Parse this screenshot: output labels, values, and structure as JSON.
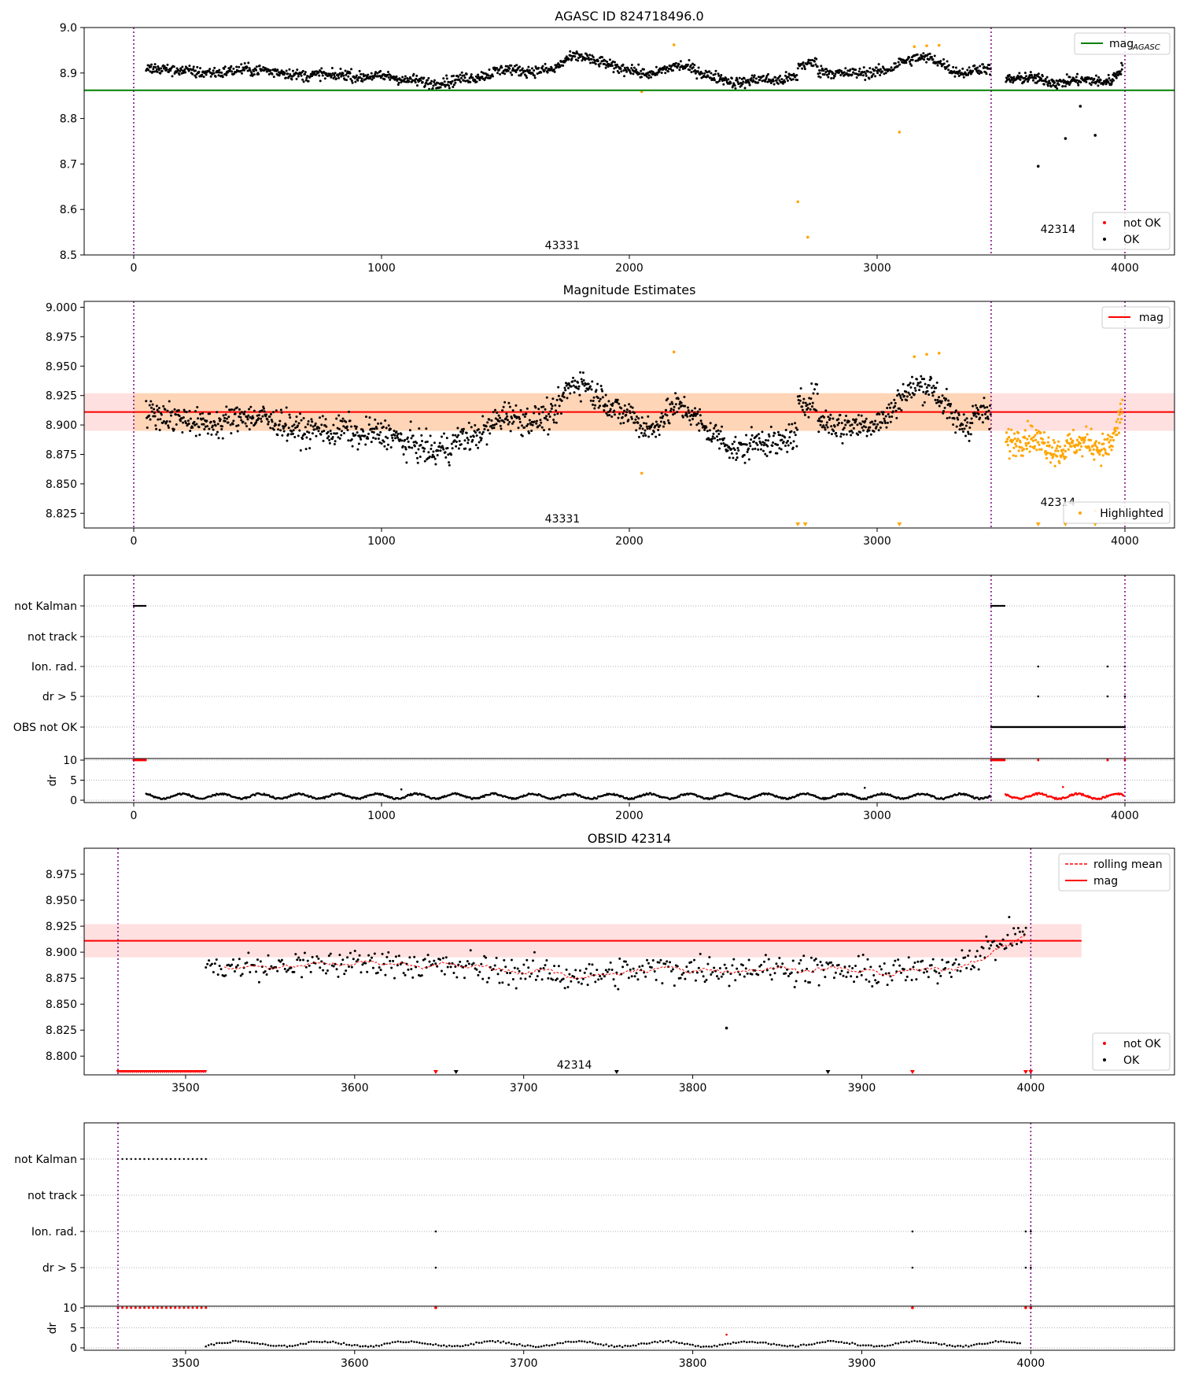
{
  "figure": {
    "title1": "AGASC ID 824718496.0",
    "title2": "Magnitude Estimates",
    "title4": "OBSID 42314"
  },
  "chart_data": [
    {
      "id": "p1",
      "type": "scatter",
      "title": "AGASC ID 824718496.0",
      "xlim": [
        -200,
        4200
      ],
      "ylim": [
        8.5,
        9.0
      ],
      "xticks": [
        0,
        1000,
        2000,
        3000,
        4000
      ],
      "yticks": [
        8.5,
        8.6,
        8.7,
        8.8,
        8.9,
        9.0
      ],
      "ytick_labels": [
        "8.5",
        "8.6",
        "8.7",
        "8.8",
        "8.9",
        "9.0"
      ],
      "obs_boundaries": [
        0,
        3460,
        4000
      ],
      "obsids": [
        {
          "label": "43331",
          "x": 1730,
          "y": 8.52
        },
        {
          "label": "42314",
          "x": 3730,
          "y": 8.555
        }
      ],
      "mag_agasc": 8.862,
      "line_label": "mag",
      "line_label_sub": "AGASC",
      "legend_points": [
        "not OK",
        "OK"
      ],
      "outliers_ok": [
        [
          3650,
          8.695
        ],
        [
          3760,
          8.756
        ],
        [
          3820,
          8.827
        ],
        [
          3880,
          8.763
        ]
      ],
      "highlighted": [
        [
          2050,
          8.859
        ],
        [
          2680,
          8.617
        ],
        [
          2720,
          8.539
        ],
        [
          3090,
          8.77
        ]
      ]
    },
    {
      "id": "p2",
      "type": "scatter",
      "title": "Magnitude Estimates",
      "xlim": [
        -200,
        4200
      ],
      "ylim": [
        8.8125,
        9.005
      ],
      "xticks": [
        0,
        1000,
        2000,
        3000,
        4000
      ],
      "yticks": [
        8.825,
        8.85,
        8.875,
        8.9,
        8.925,
        8.95,
        8.975,
        9.0
      ],
      "ytick_labels": [
        "8.825",
        "8.850",
        "8.875",
        "8.900",
        "8.925",
        "8.950",
        "8.975",
        "9.000"
      ],
      "mag": 8.911,
      "mag_band": [
        8.895,
        8.927
      ],
      "line_label": "mag",
      "legend_points": [
        "Highlighted"
      ],
      "obsids": [
        {
          "label": "43331",
          "x": 1730,
          "y": 8.82
        },
        {
          "label": "42314",
          "x": 3730,
          "y": 8.834
        }
      ],
      "obs_boundaries": [
        0,
        3460,
        4000
      ],
      "highlighted_extra": [
        [
          2050,
          8.859
        ],
        [
          3880,
          8.827
        ]
      ],
      "down_markers": [
        2680,
        2710,
        3090,
        3650,
        3760,
        3880
      ]
    },
    {
      "id": "p3",
      "type": "scatter",
      "xlim": [
        -200,
        4200
      ],
      "flags": [
        "not Kalman",
        "not track",
        "Ion. rad.",
        "dr > 5",
        "OBS not OK"
      ],
      "dr_ticks": [
        "0",
        "5",
        "10"
      ],
      "ylabel": "dr",
      "xticks": [
        0,
        1000,
        2000,
        3000,
        4000
      ],
      "obs_boundaries": [
        0,
        3460,
        4000
      ]
    },
    {
      "id": "p4",
      "type": "scatter",
      "title": "OBSID 42314",
      "xlim": [
        3440,
        4085
      ],
      "ylim": [
        8.782,
        9.0
      ],
      "xticks": [
        3500,
        3600,
        3700,
        3800,
        3900,
        4000
      ],
      "yticks": [
        8.8,
        8.825,
        8.85,
        8.875,
        8.9,
        8.925,
        8.95,
        8.975
      ],
      "ytick_labels": [
        "8.800",
        "8.825",
        "8.850",
        "8.875",
        "8.900",
        "8.925",
        "8.950",
        "8.975"
      ],
      "mag": 8.911,
      "mag_band": [
        8.895,
        8.927
      ],
      "legend": [
        "rolling mean",
        "mag"
      ],
      "legend_points": [
        "not OK",
        "OK"
      ],
      "obsid_label": "42314",
      "obs_boundaries": [
        3460,
        4000
      ],
      "outliers_ok": [
        [
          3820,
          8.827
        ]
      ],
      "red_down_markers": [
        3648,
        3930,
        3997,
        4000
      ],
      "black_down_markers": [
        3660,
        3755,
        3880
      ]
    },
    {
      "id": "p5",
      "type": "scatter",
      "xlim": [
        3440,
        4085
      ],
      "flags": [
        "not Kalman",
        "not track",
        "Ion. rad.",
        "dr > 5"
      ],
      "dr_ticks": [
        "0",
        "5",
        "10"
      ],
      "ylabel": "dr",
      "xticks": [
        3500,
        3600,
        3700,
        3800,
        3900,
        4000
      ],
      "obs_boundaries": [
        3460,
        4000
      ]
    }
  ]
}
